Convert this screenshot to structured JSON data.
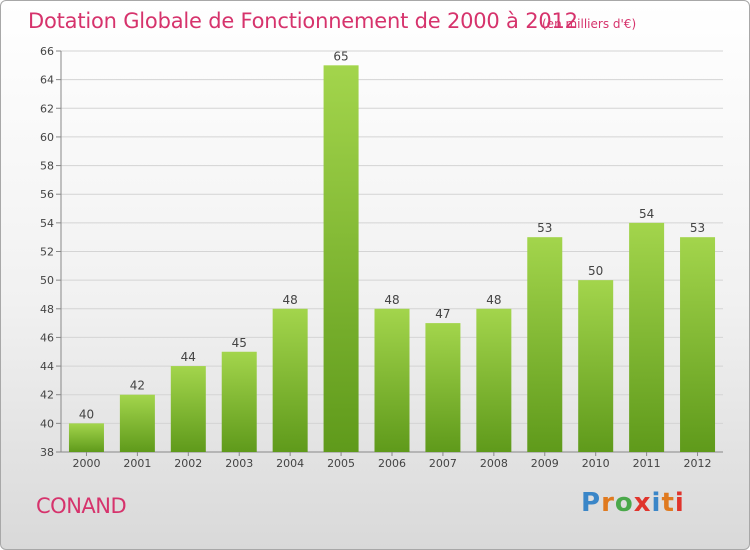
{
  "title": "Dotation Globale de Fonctionnement de 2000 à 2012",
  "subtitle": "(en milliers d'€)",
  "town": "CONAND",
  "logo": {
    "letters": [
      "P",
      "r",
      "o",
      "x",
      "i",
      "t",
      "i"
    ],
    "colors": [
      "#3a86c8",
      "#e07a1f",
      "#4aa84a",
      "#e0342c",
      "#3a86c8",
      "#e07a1f",
      "#e0342c"
    ]
  },
  "colors": {
    "bar_light": "#a3d54c",
    "bar_dark": "#5f9a1b",
    "title": "#d6336c"
  },
  "chart_data": {
    "type": "bar",
    "categories": [
      "2000",
      "2001",
      "2002",
      "2003",
      "2004",
      "2005",
      "2006",
      "2007",
      "2008",
      "2009",
      "2010",
      "2011",
      "2012"
    ],
    "values": [
      40,
      42,
      44,
      45,
      48,
      65,
      48,
      47,
      48,
      53,
      50,
      54,
      53
    ],
    "data_labels": [
      "40",
      "42",
      "44",
      "45",
      "48",
      "65",
      "48",
      "47",
      "48",
      "53",
      "50",
      "54",
      "53"
    ],
    "ylim": [
      38,
      66
    ],
    "yticks": [
      38,
      40,
      42,
      44,
      46,
      48,
      50,
      52,
      54,
      56,
      58,
      60,
      62,
      64,
      66
    ],
    "grid": true,
    "legend": "none"
  }
}
